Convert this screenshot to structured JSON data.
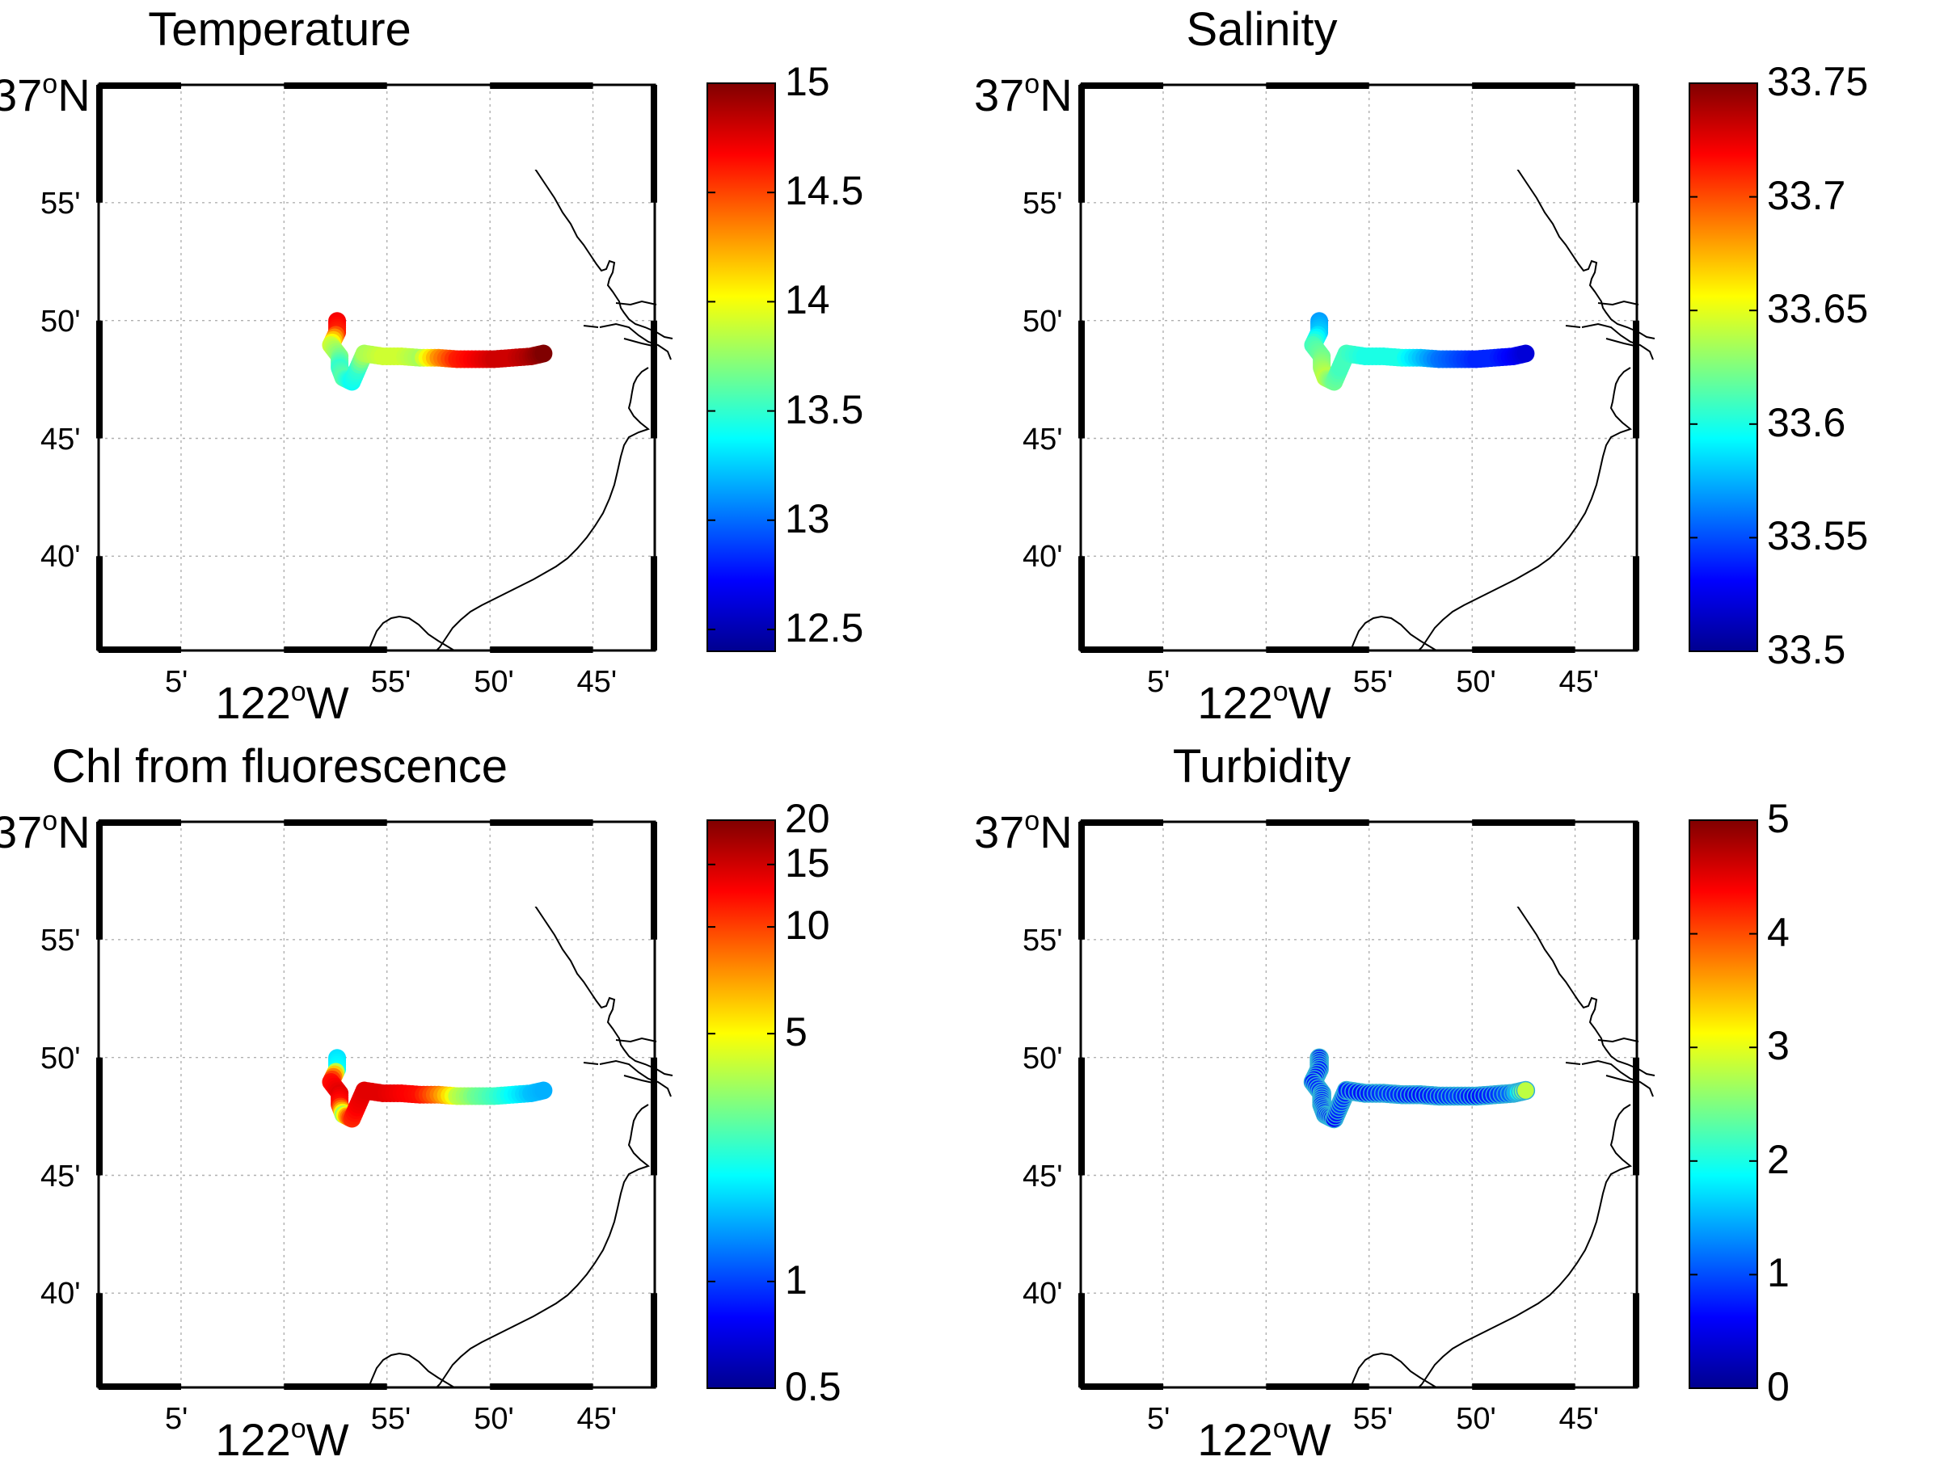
{
  "colors": {
    "colormap": "jet",
    "jet_stops": [
      "#00008f",
      "#0000ff",
      "#00ffff",
      "#ffff00",
      "#ff0000",
      "#800000"
    ],
    "coastline": "#000000",
    "grid": "#b0b0b0"
  },
  "map": {
    "lat_degree_label": "37",
    "lat_degree_suffix": "N",
    "lon_degree_label": "122",
    "lon_degree_suffix": "W",
    "lat_ticks": [
      "55'",
      "50'",
      "45'",
      "40'"
    ],
    "lon_ticks": [
      "5'",
      "55'",
      "50'",
      "45'"
    ],
    "lat_tick_values": [
      36.9167,
      36.8333,
      36.75,
      36.6667
    ],
    "lon_tick_values": [
      -122.0833,
      -121.9167,
      -121.8333,
      -121.75
    ],
    "lon_range": [
      -122.15,
      -121.7
    ],
    "lat_range": [
      36.6,
      37.0
    ],
    "grid": true
  },
  "chart_data": [
    {
      "type": "scatter",
      "title": "Temperature",
      "colorbar": {
        "ticks": [
          "12.5",
          "13",
          "13.5",
          "14",
          "14.5",
          "15"
        ],
        "range": [
          12.4,
          15.0
        ],
        "scale": "linear"
      },
      "track": [
        {
          "lon": -121.957,
          "lat": 36.833,
          "v": 14.7
        },
        {
          "lon": -121.957,
          "lat": 36.825,
          "v": 14.6
        },
        {
          "lon": -121.962,
          "lat": 36.816,
          "v": 13.9
        },
        {
          "lon": -121.955,
          "lat": 36.808,
          "v": 13.7
        },
        {
          "lon": -121.955,
          "lat": 36.8,
          "v": 13.5
        },
        {
          "lon": -121.952,
          "lat": 36.793,
          "v": 13.6
        },
        {
          "lon": -121.945,
          "lat": 36.79,
          "v": 13.4
        },
        {
          "lon": -121.94,
          "lat": 36.8,
          "v": 13.5
        },
        {
          "lon": -121.935,
          "lat": 36.81,
          "v": 13.8
        },
        {
          "lon": -121.92,
          "lat": 36.808,
          "v": 13.9
        },
        {
          "lon": -121.905,
          "lat": 36.808,
          "v": 13.9
        },
        {
          "lon": -121.89,
          "lat": 36.807,
          "v": 13.8
        },
        {
          "lon": -121.875,
          "lat": 36.807,
          "v": 14.3
        },
        {
          "lon": -121.86,
          "lat": 36.806,
          "v": 14.6
        },
        {
          "lon": -121.845,
          "lat": 36.806,
          "v": 14.7
        },
        {
          "lon": -121.83,
          "lat": 36.806,
          "v": 14.8
        },
        {
          "lon": -121.815,
          "lat": 36.807,
          "v": 14.8
        },
        {
          "lon": -121.8,
          "lat": 36.808,
          "v": 14.9
        },
        {
          "lon": -121.79,
          "lat": 36.81,
          "v": 15.0
        }
      ]
    },
    {
      "type": "scatter",
      "title": "Salinity",
      "colorbar": {
        "ticks": [
          "33.5",
          "33.55",
          "33.6",
          "33.65",
          "33.7",
          "33.75"
        ],
        "range": [
          33.5,
          33.75
        ],
        "scale": "linear"
      },
      "track": [
        {
          "lon": -121.957,
          "lat": 36.833,
          "v": 33.57
        },
        {
          "lon": -121.957,
          "lat": 36.825,
          "v": 33.58
        },
        {
          "lon": -121.962,
          "lat": 36.816,
          "v": 33.61
        },
        {
          "lon": -121.955,
          "lat": 36.808,
          "v": 33.62
        },
        {
          "lon": -121.955,
          "lat": 36.8,
          "v": 33.63
        },
        {
          "lon": -121.952,
          "lat": 36.793,
          "v": 33.64
        },
        {
          "lon": -121.945,
          "lat": 36.79,
          "v": 33.62
        },
        {
          "lon": -121.94,
          "lat": 36.8,
          "v": 33.61
        },
        {
          "lon": -121.935,
          "lat": 36.81,
          "v": 33.61
        },
        {
          "lon": -121.92,
          "lat": 36.808,
          "v": 33.6
        },
        {
          "lon": -121.905,
          "lat": 36.808,
          "v": 33.6
        },
        {
          "lon": -121.89,
          "lat": 36.807,
          "v": 33.6
        },
        {
          "lon": -121.875,
          "lat": 36.807,
          "v": 33.58
        },
        {
          "lon": -121.86,
          "lat": 36.806,
          "v": 33.56
        },
        {
          "lon": -121.845,
          "lat": 36.806,
          "v": 33.55
        },
        {
          "lon": -121.83,
          "lat": 36.806,
          "v": 33.54
        },
        {
          "lon": -121.815,
          "lat": 36.807,
          "v": 33.54
        },
        {
          "lon": -121.8,
          "lat": 36.808,
          "v": 33.53
        },
        {
          "lon": -121.79,
          "lat": 36.81,
          "v": 33.52
        }
      ]
    },
    {
      "type": "scatter",
      "title": "Chl from fluorescence",
      "colorbar": {
        "ticks": [
          "0.5",
          "1",
          "5",
          "10",
          "15",
          "20"
        ],
        "tick_values": [
          0.5,
          1,
          5,
          10,
          15,
          20
        ],
        "range": [
          0.5,
          20
        ],
        "scale": "log"
      },
      "track": [
        {
          "lon": -121.957,
          "lat": 36.833,
          "v": 1.8
        },
        {
          "lon": -121.957,
          "lat": 36.825,
          "v": 2.0
        },
        {
          "lon": -121.962,
          "lat": 36.816,
          "v": 12
        },
        {
          "lon": -121.955,
          "lat": 36.808,
          "v": 14
        },
        {
          "lon": -121.955,
          "lat": 36.8,
          "v": 12
        },
        {
          "lon": -121.952,
          "lat": 36.793,
          "v": 3.5
        },
        {
          "lon": -121.945,
          "lat": 36.79,
          "v": 11
        },
        {
          "lon": -121.94,
          "lat": 36.8,
          "v": 13
        },
        {
          "lon": -121.935,
          "lat": 36.81,
          "v": 14
        },
        {
          "lon": -121.92,
          "lat": 36.808,
          "v": 14
        },
        {
          "lon": -121.905,
          "lat": 36.808,
          "v": 13
        },
        {
          "lon": -121.89,
          "lat": 36.807,
          "v": 12
        },
        {
          "lon": -121.875,
          "lat": 36.807,
          "v": 8
        },
        {
          "lon": -121.86,
          "lat": 36.806,
          "v": 4
        },
        {
          "lon": -121.845,
          "lat": 36.806,
          "v": 3
        },
        {
          "lon": -121.83,
          "lat": 36.806,
          "v": 2.5
        },
        {
          "lon": -121.815,
          "lat": 36.807,
          "v": 2
        },
        {
          "lon": -121.8,
          "lat": 36.808,
          "v": 1.6
        },
        {
          "lon": -121.79,
          "lat": 36.81,
          "v": 1.5
        }
      ]
    },
    {
      "type": "scatter",
      "title": "Turbidity",
      "colorbar": {
        "ticks": [
          "0",
          "1",
          "2",
          "3",
          "4",
          "5"
        ],
        "range": [
          0,
          5
        ],
        "scale": "linear"
      },
      "track": [
        {
          "lon": -121.957,
          "lat": 36.833,
          "v": 0.6
        },
        {
          "lon": -121.957,
          "lat": 36.825,
          "v": 0.8
        },
        {
          "lon": -121.962,
          "lat": 36.816,
          "v": 0.7
        },
        {
          "lon": -121.955,
          "lat": 36.808,
          "v": 0.9
        },
        {
          "lon": -121.955,
          "lat": 36.8,
          "v": 0.7
        },
        {
          "lon": -121.952,
          "lat": 36.793,
          "v": 0.8
        },
        {
          "lon": -121.945,
          "lat": 36.79,
          "v": 0.6
        },
        {
          "lon": -121.94,
          "lat": 36.8,
          "v": 0.9
        },
        {
          "lon": -121.935,
          "lat": 36.81,
          "v": 0.8
        },
        {
          "lon": -121.92,
          "lat": 36.808,
          "v": 0.7
        },
        {
          "lon": -121.905,
          "lat": 36.808,
          "v": 0.9
        },
        {
          "lon": -121.89,
          "lat": 36.807,
          "v": 0.8
        },
        {
          "lon": -121.875,
          "lat": 36.807,
          "v": 0.7
        },
        {
          "lon": -121.86,
          "lat": 36.806,
          "v": 0.8
        },
        {
          "lon": -121.845,
          "lat": 36.806,
          "v": 0.9
        },
        {
          "lon": -121.83,
          "lat": 36.806,
          "v": 0.7
        },
        {
          "lon": -121.815,
          "lat": 36.807,
          "v": 0.8
        },
        {
          "lon": -121.8,
          "lat": 36.808,
          "v": 1.2
        },
        {
          "lon": -121.79,
          "lat": 36.81,
          "v": 2.8
        }
      ]
    }
  ]
}
